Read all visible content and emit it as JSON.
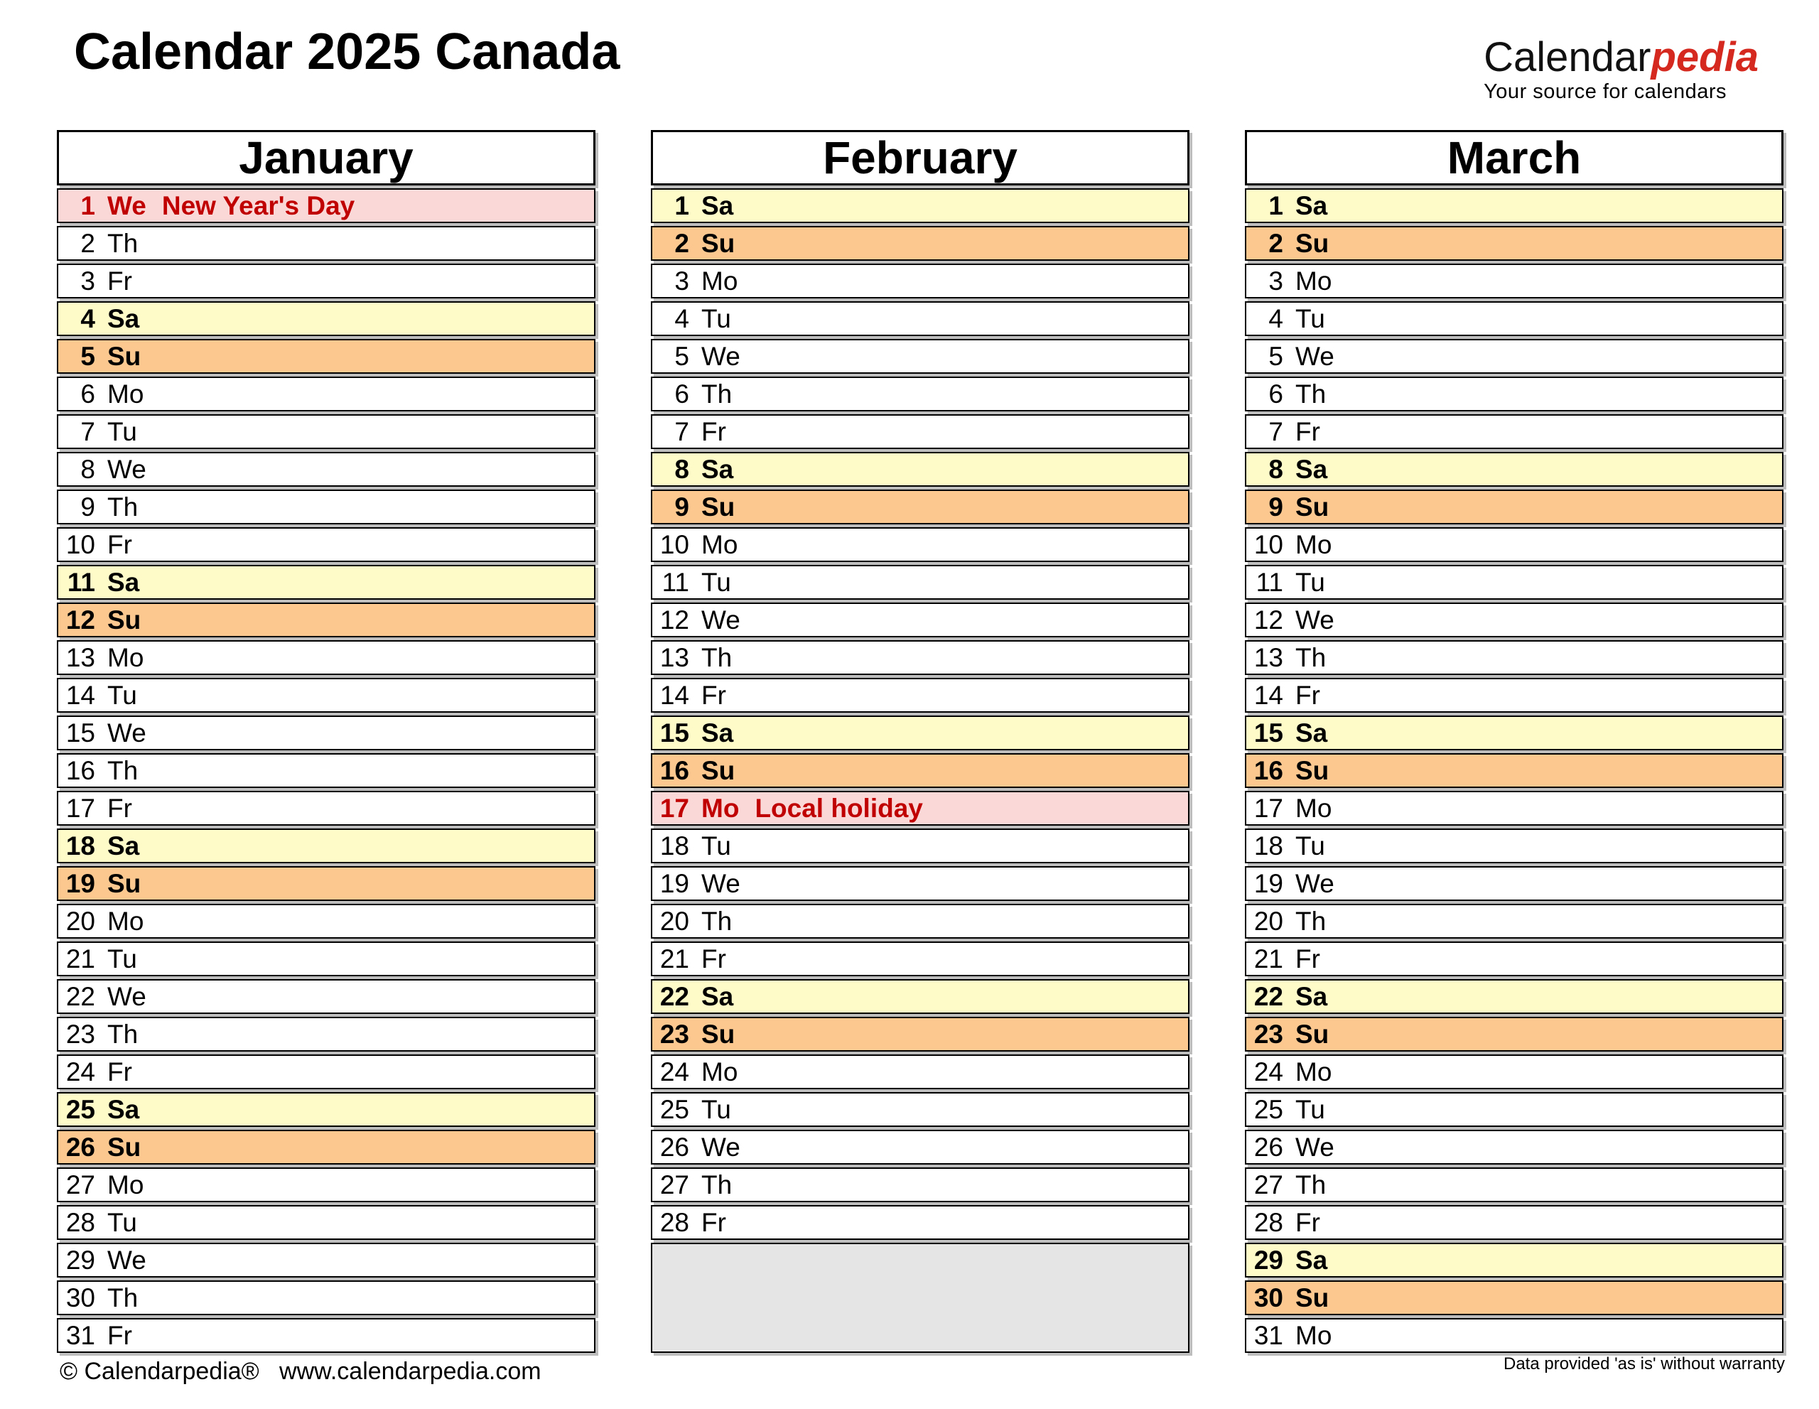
{
  "page": {
    "title": "Calendar 2025 Canada",
    "logo": {
      "black": "Calendar",
      "red": "pedia",
      "tagline": "Your source for calendars"
    },
    "footer_left": "© Calendarpedia®   www.calendarpedia.com",
    "footer_right": "Data provided 'as is' without warranty"
  },
  "colors": {
    "saturday_bg": "#fffbc8",
    "sunday_bg": "#fcc890",
    "holiday_bg": "#fbd8d8",
    "holiday_text": "#c00000",
    "empty_bg": "#e5e5e5",
    "logo_red": "#d5281e",
    "border": "#000000"
  },
  "months": [
    {
      "name": "January",
      "empty_rows": 0,
      "days": [
        {
          "day": 1,
          "weekday": "We",
          "holiday": "New Year's Day"
        },
        {
          "day": 2,
          "weekday": "Th"
        },
        {
          "day": 3,
          "weekday": "Fr"
        },
        {
          "day": 4,
          "weekday": "Sa"
        },
        {
          "day": 5,
          "weekday": "Su"
        },
        {
          "day": 6,
          "weekday": "Mo"
        },
        {
          "day": 7,
          "weekday": "Tu"
        },
        {
          "day": 8,
          "weekday": "We"
        },
        {
          "day": 9,
          "weekday": "Th"
        },
        {
          "day": 10,
          "weekday": "Fr"
        },
        {
          "day": 11,
          "weekday": "Sa"
        },
        {
          "day": 12,
          "weekday": "Su"
        },
        {
          "day": 13,
          "weekday": "Mo"
        },
        {
          "day": 14,
          "weekday": "Tu"
        },
        {
          "day": 15,
          "weekday": "We"
        },
        {
          "day": 16,
          "weekday": "Th"
        },
        {
          "day": 17,
          "weekday": "Fr"
        },
        {
          "day": 18,
          "weekday": "Sa"
        },
        {
          "day": 19,
          "weekday": "Su"
        },
        {
          "day": 20,
          "weekday": "Mo"
        },
        {
          "day": 21,
          "weekday": "Tu"
        },
        {
          "day": 22,
          "weekday": "We"
        },
        {
          "day": 23,
          "weekday": "Th"
        },
        {
          "day": 24,
          "weekday": "Fr"
        },
        {
          "day": 25,
          "weekday": "Sa"
        },
        {
          "day": 26,
          "weekday": "Su"
        },
        {
          "day": 27,
          "weekday": "Mo"
        },
        {
          "day": 28,
          "weekday": "Tu"
        },
        {
          "day": 29,
          "weekday": "We"
        },
        {
          "day": 30,
          "weekday": "Th"
        },
        {
          "day": 31,
          "weekday": "Fr"
        }
      ]
    },
    {
      "name": "February",
      "empty_rows": 3,
      "days": [
        {
          "day": 1,
          "weekday": "Sa"
        },
        {
          "day": 2,
          "weekday": "Su"
        },
        {
          "day": 3,
          "weekday": "Mo"
        },
        {
          "day": 4,
          "weekday": "Tu"
        },
        {
          "day": 5,
          "weekday": "We"
        },
        {
          "day": 6,
          "weekday": "Th"
        },
        {
          "day": 7,
          "weekday": "Fr"
        },
        {
          "day": 8,
          "weekday": "Sa"
        },
        {
          "day": 9,
          "weekday": "Su"
        },
        {
          "day": 10,
          "weekday": "Mo"
        },
        {
          "day": 11,
          "weekday": "Tu"
        },
        {
          "day": 12,
          "weekday": "We"
        },
        {
          "day": 13,
          "weekday": "Th"
        },
        {
          "day": 14,
          "weekday": "Fr"
        },
        {
          "day": 15,
          "weekday": "Sa"
        },
        {
          "day": 16,
          "weekday": "Su"
        },
        {
          "day": 17,
          "weekday": "Mo",
          "holiday": "Local holiday"
        },
        {
          "day": 18,
          "weekday": "Tu"
        },
        {
          "day": 19,
          "weekday": "We"
        },
        {
          "day": 20,
          "weekday": "Th"
        },
        {
          "day": 21,
          "weekday": "Fr"
        },
        {
          "day": 22,
          "weekday": "Sa"
        },
        {
          "day": 23,
          "weekday": "Su"
        },
        {
          "day": 24,
          "weekday": "Mo"
        },
        {
          "day": 25,
          "weekday": "Tu"
        },
        {
          "day": 26,
          "weekday": "We"
        },
        {
          "day": 27,
          "weekday": "Th"
        },
        {
          "day": 28,
          "weekday": "Fr"
        }
      ]
    },
    {
      "name": "March",
      "empty_rows": 0,
      "days": [
        {
          "day": 1,
          "weekday": "Sa"
        },
        {
          "day": 2,
          "weekday": "Su"
        },
        {
          "day": 3,
          "weekday": "Mo"
        },
        {
          "day": 4,
          "weekday": "Tu"
        },
        {
          "day": 5,
          "weekday": "We"
        },
        {
          "day": 6,
          "weekday": "Th"
        },
        {
          "day": 7,
          "weekday": "Fr"
        },
        {
          "day": 8,
          "weekday": "Sa"
        },
        {
          "day": 9,
          "weekday": "Su"
        },
        {
          "day": 10,
          "weekday": "Mo"
        },
        {
          "day": 11,
          "weekday": "Tu"
        },
        {
          "day": 12,
          "weekday": "We"
        },
        {
          "day": 13,
          "weekday": "Th"
        },
        {
          "day": 14,
          "weekday": "Fr"
        },
        {
          "day": 15,
          "weekday": "Sa"
        },
        {
          "day": 16,
          "weekday": "Su"
        },
        {
          "day": 17,
          "weekday": "Mo"
        },
        {
          "day": 18,
          "weekday": "Tu"
        },
        {
          "day": 19,
          "weekday": "We"
        },
        {
          "day": 20,
          "weekday": "Th"
        },
        {
          "day": 21,
          "weekday": "Fr"
        },
        {
          "day": 22,
          "weekday": "Sa"
        },
        {
          "day": 23,
          "weekday": "Su"
        },
        {
          "day": 24,
          "weekday": "Mo"
        },
        {
          "day": 25,
          "weekday": "Tu"
        },
        {
          "day": 26,
          "weekday": "We"
        },
        {
          "day": 27,
          "weekday": "Th"
        },
        {
          "day": 28,
          "weekday": "Fr"
        },
        {
          "day": 29,
          "weekday": "Sa"
        },
        {
          "day": 30,
          "weekday": "Su"
        },
        {
          "day": 31,
          "weekday": "Mo"
        }
      ]
    }
  ]
}
